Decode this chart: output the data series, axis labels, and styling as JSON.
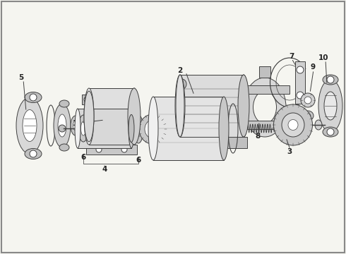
{
  "bg": "#f5f5f0",
  "lc": "#404040",
  "lw": 0.7,
  "fig_w": 4.9,
  "fig_h": 3.6,
  "dpi": 100,
  "xlim": [
    0,
    490
  ],
  "ylim": [
    0,
    360
  ]
}
